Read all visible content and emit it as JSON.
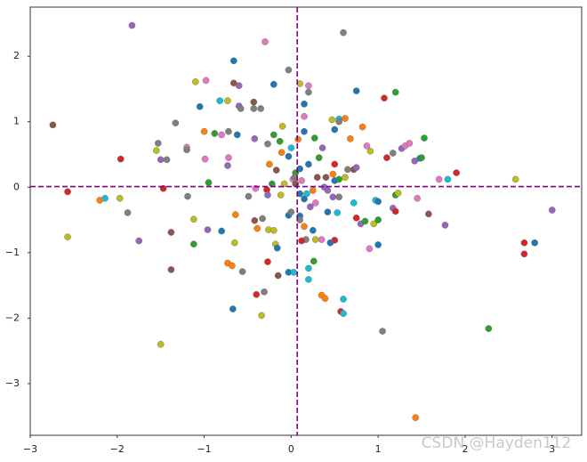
{
  "chart_data": {
    "type": "scatter",
    "xlim": [
      -3,
      3.34
    ],
    "ylim": [
      -3.79,
      2.75
    ],
    "xticks": [
      {
        "value": -3,
        "label": "−3"
      },
      {
        "value": -2,
        "label": "−2"
      },
      {
        "value": -1,
        "label": "−1"
      },
      0,
      1,
      2,
      3
    ],
    "yticks": [
      {
        "value": -3,
        "label": "−3"
      },
      {
        "value": -2,
        "label": "−2"
      },
      {
        "value": -1,
        "label": "−1"
      },
      0,
      1,
      2
    ],
    "hline": 0.01,
    "vline": 0.07,
    "ref_line_color": "#800080",
    "watermark": "CSDN @Hayden112",
    "series": [
      {
        "x": [
          -1.83,
          -0.3,
          0.6,
          -0.66,
          -0.03,
          0.1,
          0.2,
          0.2,
          -0.2,
          -0.66,
          -0.6,
          -1.1,
          -0.98,
          -0.73,
          -0.82,
          -1.05,
          -0.6,
          -0.58,
          -0.43,
          -0.43,
          -0.35,
          0.15,
          0.15,
          0.75,
          1.07,
          1.2,
          -1.33,
          -2.74,
          0.47,
          0.55,
          0.62,
          0.55,
          0.82,
          0.5,
          -0.1,
          -0.2,
          -0.13,
          -1.0,
          -0.88,
          -0.8,
          -0.72,
          -0.62,
          -0.42,
          -0.27,
          0.08,
          0.27,
          0.68,
          0.15,
          0.36,
          0.87,
          0.91,
          1.27,
          1.31,
          1.36,
          1.53,
          1.17,
          1.1,
          -1.53,
          -1.55,
          -1.2,
          -1.2,
          -1.5,
          -1.43,
          -1.96,
          -0.99,
          -0.72,
          -0.73,
          -0.11,
          -0.03,
          0.0,
          0.32,
          0.5,
          0.65,
          0.72,
          0.75,
          1.48,
          1.5,
          1.42,
          1.9,
          1.8,
          1.7,
          2.58,
          3.0,
          -0.25,
          -0.17,
          0.1,
          0.05,
          0.2,
          0.3,
          0.4,
          0.5,
          0.55,
          0.48,
          0.62,
          -0.95,
          -0.22,
          -0.08,
          0.02,
          0.04,
          0.05,
          0.12,
          0.25,
          0.38,
          0.42,
          -2.57,
          -2.2,
          -2.14,
          -1.97,
          -1.47,
          -1.19,
          -0.49,
          -0.41,
          -0.28,
          -0.27,
          -0.12,
          0.1,
          0.18,
          0.15,
          0.28,
          0.22,
          0.48,
          0.55,
          0.72,
          0.97,
          1.0,
          1.2,
          1.23,
          1.17,
          1.2,
          1.45,
          1.58,
          1.77,
          -1.88,
          -2.57,
          -1.75,
          -1.38,
          -1.12,
          -0.96,
          -0.8,
          -0.64,
          -0.42,
          -0.39,
          -0.33,
          -0.26,
          -0.2,
          -0.03,
          0.0,
          0.1,
          0.1,
          0.15,
          0.17,
          0.25,
          0.28,
          0.35,
          0.42,
          0.53,
          0.75,
          0.8,
          0.85,
          0.95,
          1.0,
          0.9,
          1.0,
          0.5,
          0.45,
          0.12,
          -1.12,
          -0.65,
          -0.18,
          -0.16,
          -1.38,
          -0.73,
          -0.68,
          -0.56,
          -0.27,
          -0.03,
          0.03,
          -0.15,
          0.26,
          0.2,
          0.2,
          -0.4,
          -0.31,
          0.35,
          0.39,
          0.57,
          0.6,
          0.6,
          -0.67,
          -0.34,
          1.05,
          -1.5,
          2.27,
          2.68,
          2.68,
          2.8,
          1.43
        ],
        "values": [
          2.47,
          2.22,
          2.36,
          1.93,
          1.79,
          1.58,
          1.55,
          1.45,
          1.57,
          1.59,
          1.55,
          1.61,
          1.63,
          1.32,
          1.32,
          1.23,
          1.24,
          1.2,
          1.3,
          1.2,
          1.2,
          1.27,
          1.08,
          1.47,
          1.36,
          1.45,
          0.98,
          0.95,
          1.03,
          1.04,
          1.05,
          1.0,
          0.92,
          0.88,
          0.93,
          0.8,
          0.7,
          0.85,
          0.82,
          0.8,
          0.85,
          0.8,
          0.74,
          0.66,
          0.73,
          0.75,
          0.74,
          0.85,
          0.6,
          0.63,
          0.55,
          0.59,
          0.63,
          0.67,
          0.75,
          0.52,
          0.45,
          0.67,
          0.56,
          0.61,
          0.57,
          0.42,
          0.42,
          0.43,
          0.43,
          0.45,
          0.33,
          0.53,
          0.47,
          0.6,
          0.45,
          0.35,
          0.27,
          0.27,
          0.3,
          0.44,
          0.45,
          0.4,
          0.22,
          0.12,
          0.12,
          0.12,
          -0.35,
          0.35,
          0.26,
          0.28,
          0.22,
          0.35,
          0.15,
          0.15,
          0.1,
          0.12,
          0.2,
          0.15,
          0.07,
          0.05,
          0.05,
          0.12,
          0.15,
          0.05,
          0.1,
          -0.05,
          0.0,
          -0.05,
          -0.07,
          -0.2,
          -0.17,
          -0.17,
          -0.02,
          -0.14,
          -0.14,
          -0.02,
          -0.04,
          -0.12,
          -0.12,
          -0.1,
          -0.1,
          -0.18,
          -0.24,
          -0.3,
          -0.15,
          -0.15,
          -0.24,
          -0.2,
          -0.22,
          -0.12,
          -0.09,
          -0.32,
          -0.37,
          -0.17,
          -0.41,
          -0.58,
          -0.39,
          -0.76,
          -0.82,
          -0.69,
          -0.49,
          -0.65,
          -0.67,
          -0.42,
          -0.51,
          -0.63,
          -0.48,
          -0.65,
          -0.66,
          -0.43,
          -0.38,
          -0.44,
          -0.5,
          -0.6,
          -0.8,
          -0.66,
          -0.8,
          -0.8,
          -0.38,
          -0.39,
          -0.47,
          -0.56,
          -0.52,
          -0.56,
          -0.5,
          -0.94,
          -0.88,
          -0.81,
          -0.85,
          -0.82,
          -0.87,
          -0.85,
          -0.87,
          -0.93,
          -1.26,
          -1.16,
          -1.2,
          -1.29,
          -1.14,
          -1.3,
          -1.3,
          -1.35,
          -1.13,
          -1.24,
          -1.41,
          -1.64,
          -1.6,
          -1.65,
          -1.7,
          -1.9,
          -1.93,
          -1.71,
          -1.86,
          -1.96,
          -2.2,
          -2.4,
          -2.16,
          -0.85,
          -1.02,
          -0.85,
          -3.52
        ],
        "colors": [
          "#9467bd",
          "#e377c2",
          "#7f7f7f",
          "#1f77b4",
          "#7f7f7f",
          "#bcbd22",
          "#e377c2",
          "#7f7f7f",
          "#1f77b4",
          "#8c564b",
          "#9467bd",
          "#bcbd22",
          "#e377c2",
          "#bcbd22",
          "#17becf",
          "#1f77b4",
          "#9467bd",
          "#7f7f7f",
          "#8c564b",
          "#7f7f7f",
          "#7f7f7f",
          "#1f77b4",
          "#e377c2",
          "#1f77b4",
          "#d62728",
          "#2ca02c",
          "#7f7f7f",
          "#8c564b",
          "#bcbd22",
          "#17becf",
          "#ff7f0e",
          "#7f7f7f",
          "#ff7f0e",
          "#1f77b4",
          "#bcbd22",
          "#2ca02c",
          "#2ca02c",
          "#ff7f0e",
          "#2ca02c",
          "#e377c2",
          "#7f7f7f",
          "#1f77b4",
          "#9467bd",
          "#7f7f7f",
          "#ff7f0e",
          "#2ca02c",
          "#ff7f0e",
          "#1f77b4",
          "#9467bd",
          "#e377c2",
          "#bcbd22",
          "#9467bd",
          "#e377c2",
          "#e377c2",
          "#2ca02c",
          "#7f7f7f",
          "#d62728",
          "#7f7f7f",
          "#bcbd22",
          "#e377c2",
          "#7f7f7f",
          "#9467bd",
          "#7f7f7f",
          "#d62728",
          "#e377c2",
          "#e377c2",
          "#9467bd",
          "#ff7f0e",
          "#1f77b4",
          "#17becf",
          "#2ca02c",
          "#d62728",
          "#7f7f7f",
          "#8c564b",
          "#9467bd",
          "#1f77b4",
          "#2ca02c",
          "#9467bd",
          "#d62728",
          "#17becf",
          "#e377c2",
          "#bcbd22",
          "#9467bd",
          "#ff7f0e",
          "#8c564b",
          "#1f77b4",
          "#2ca02c",
          "#1f77b4",
          "#8c564b",
          "#8c564b",
          "#1f77b4",
          "#2ca02c",
          "#ff7f0e",
          "#bcbd22",
          "#2ca02c",
          "#2ca02c",
          "#bcbd22",
          "#e377c2",
          "#7f7f7f",
          "#8c564b",
          "#e377c2",
          "#ff7f0e",
          "#9467bd",
          "#9467bd",
          "#d62728",
          "#ff7f0e",
          "#17becf",
          "#bcbd22",
          "#d62728",
          "#7f7f7f",
          "#7f7f7f",
          "#e377c2",
          "#d62728",
          "#9467bd",
          "#bcbd22",
          "#1f77b4",
          "#17becf",
          "#1f77b4",
          "#e377c2",
          "#9467bd",
          "#9467bd",
          "#7f7f7f",
          "#17becf",
          "#17becf",
          "#1f77b4",
          "#2ca02c",
          "#bcbd22",
          "#9467bd",
          "#d62728",
          "#e377c2",
          "#8c564b",
          "#9467bd",
          "#7f7f7f",
          "#bcbd22",
          "#9467bd",
          "#8c564b",
          "#bcbd22",
          "#9467bd",
          "#1f77b4",
          "#ff7f0e",
          "#8c564b",
          "#ff7f0e",
          "#7f7f7f",
          "#bcbd22",
          "#bcbd22",
          "#1f77b4",
          "#7f7f7f",
          "#1f77b4",
          "#7f7f7f",
          "#ff7f0e",
          "#7f7f7f",
          "#1f77b4",
          "#bcbd22",
          "#e377c2",
          "#1f77b4",
          "#17becf",
          "#d62728",
          "#9467bd",
          "#2ca02c",
          "#bcbd22",
          "#2ca02c",
          "#e377c2",
          "#1f77b4",
          "#d62728",
          "#1f77b4",
          "#d62728",
          "#2ca02c",
          "#bcbd22",
          "#bcbd22",
          "#1f77b4",
          "#8c564b",
          "#ff7f0e",
          "#ff7f0e",
          "#7f7f7f",
          "#d62728",
          "#1f77b4",
          "#17becf",
          "#8c564b",
          "#2ca02c",
          "#17becf",
          "#17becf",
          "#d62728",
          "#7f7f7f",
          "#ff7f0e",
          "#ff7f0e",
          "#d62728",
          "#17becf",
          "#17becf",
          "#1f77b4",
          "#bcbd22",
          "#7f7f7f",
          "#bcbd22",
          "#2ca02c",
          "#d62728",
          "#d62728",
          "#1f77b4",
          "#ff7f0e"
        ]
      }
    ]
  }
}
